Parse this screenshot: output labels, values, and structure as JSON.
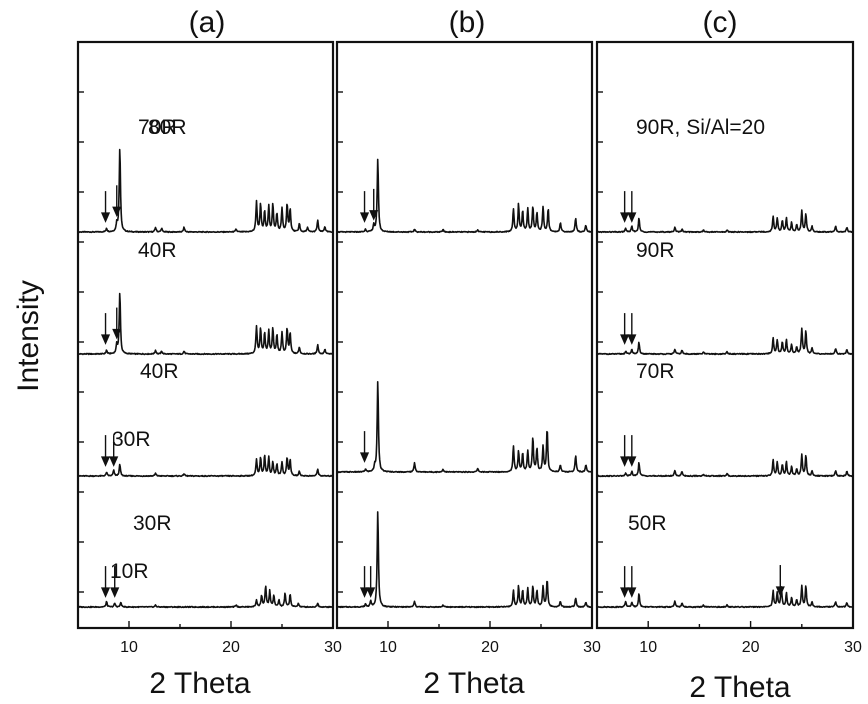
{
  "y_axis_title": "Intensity",
  "chart_data": [
    {
      "type": "line",
      "panel_label": "(a)",
      "xlabel": "2 Theta",
      "ylabel": "Intensity",
      "xlim": [
        5,
        30
      ],
      "x_ticks": [
        10,
        20,
        30
      ],
      "stacked": true,
      "series": [
        {
          "name": "70R",
          "arrows": [
            7.7,
            8.8
          ],
          "peaks": [
            [
              7.8,
              0.08
            ],
            [
              8.8,
              0.18
            ],
            [
              9.1,
              1.85
            ],
            [
              12.6,
              0.1
            ],
            [
              13.2,
              0.08
            ],
            [
              15.4,
              0.1
            ],
            [
              20.5,
              0.06
            ],
            [
              22.5,
              0.65
            ],
            [
              22.9,
              0.6
            ],
            [
              23.3,
              0.45
            ],
            [
              23.7,
              0.55
            ],
            [
              24.1,
              0.6
            ],
            [
              24.5,
              0.4
            ],
            [
              25.0,
              0.5
            ],
            [
              25.5,
              0.6
            ],
            [
              25.8,
              0.5
            ],
            [
              26.7,
              0.18
            ],
            [
              27.5,
              0.1
            ],
            [
              28.5,
              0.25
            ],
            [
              29.2,
              0.12
            ]
          ]
        },
        {
          "name": "40R",
          "arrows": [
            7.7,
            8.8
          ],
          "peaks": [
            [
              7.8,
              0.08
            ],
            [
              8.8,
              0.2
            ],
            [
              9.1,
              1.35
            ],
            [
              12.6,
              0.08
            ],
            [
              13.2,
              0.06
            ],
            [
              15.4,
              0.06
            ],
            [
              22.5,
              0.6
            ],
            [
              22.9,
              0.55
            ],
            [
              23.3,
              0.45
            ],
            [
              23.7,
              0.5
            ],
            [
              24.1,
              0.55
            ],
            [
              24.5,
              0.4
            ],
            [
              25.0,
              0.45
            ],
            [
              25.5,
              0.55
            ],
            [
              25.8,
              0.45
            ],
            [
              26.7,
              0.15
            ],
            [
              28.5,
              0.2
            ],
            [
              29.2,
              0.1
            ]
          ]
        },
        {
          "name": "30R",
          "arrows": [
            7.7,
            8.5
          ],
          "peaks": [
            [
              7.8,
              0.08
            ],
            [
              8.5,
              0.12
            ],
            [
              9.1,
              0.25
            ],
            [
              12.6,
              0.06
            ],
            [
              15.4,
              0.05
            ],
            [
              22.5,
              0.35
            ],
            [
              22.9,
              0.4
            ],
            [
              23.3,
              0.45
            ],
            [
              23.7,
              0.4
            ],
            [
              24.1,
              0.3
            ],
            [
              24.5,
              0.25
            ],
            [
              25.0,
              0.3
            ],
            [
              25.5,
              0.4
            ],
            [
              25.8,
              0.35
            ],
            [
              26.7,
              0.1
            ],
            [
              28.5,
              0.15
            ]
          ]
        },
        {
          "name": "10R",
          "arrows": [
            7.7,
            8.6
          ],
          "peaks": [
            [
              7.8,
              0.12
            ],
            [
              8.6,
              0.08
            ],
            [
              9.2,
              0.1
            ],
            [
              12.6,
              0.04
            ],
            [
              20.5,
              0.04
            ],
            [
              22.5,
              0.15
            ],
            [
              23.0,
              0.25
            ],
            [
              23.4,
              0.45
            ],
            [
              23.8,
              0.35
            ],
            [
              24.2,
              0.25
            ],
            [
              24.7,
              0.15
            ],
            [
              25.3,
              0.3
            ],
            [
              25.8,
              0.28
            ],
            [
              26.6,
              0.08
            ],
            [
              28.5,
              0.08
            ]
          ]
        }
      ]
    },
    {
      "type": "line",
      "panel_label": "(b)",
      "xlabel": "2 Theta",
      "ylabel": "",
      "xlim": [
        5,
        30
      ],
      "x_ticks": [
        10,
        20,
        30
      ],
      "stacked": true,
      "series": [
        {
          "name": "80R",
          "arrows": [
            7.7,
            8.6
          ],
          "peaks": [
            [
              7.8,
              0.06
            ],
            [
              8.6,
              0.15
            ],
            [
              9.0,
              1.6
            ],
            [
              12.6,
              0.06
            ],
            [
              15.4,
              0.05
            ],
            [
              18.8,
              0.05
            ],
            [
              22.3,
              0.5
            ],
            [
              22.8,
              0.6
            ],
            [
              23.2,
              0.45
            ],
            [
              23.7,
              0.5
            ],
            [
              24.2,
              0.55
            ],
            [
              24.6,
              0.4
            ],
            [
              25.2,
              0.55
            ],
            [
              25.7,
              0.5
            ],
            [
              26.9,
              0.2
            ],
            [
              28.4,
              0.3
            ],
            [
              29.4,
              0.15
            ]
          ]
        },
        {
          "name": "40R",
          "arrows": [
            7.7
          ],
          "peaks": [
            [
              7.8,
              0.06
            ],
            [
              8.7,
              0.12
            ],
            [
              9.0,
              2.0
            ],
            [
              12.6,
              0.2
            ],
            [
              15.4,
              0.06
            ],
            [
              18.8,
              0.08
            ],
            [
              22.3,
              0.55
            ],
            [
              22.8,
              0.45
            ],
            [
              23.2,
              0.4
            ],
            [
              23.7,
              0.45
            ],
            [
              24.2,
              0.75
            ],
            [
              24.6,
              0.5
            ],
            [
              25.2,
              0.55
            ],
            [
              25.6,
              0.95
            ],
            [
              26.9,
              0.15
            ],
            [
              28.4,
              0.35
            ],
            [
              29.4,
              0.15
            ]
          ]
        },
        {
          "name": "30R",
          "arrows": [
            7.7,
            8.3
          ],
          "peaks": [
            [
              7.8,
              0.06
            ],
            [
              8.3,
              0.12
            ],
            [
              9.0,
              2.1
            ],
            [
              12.6,
              0.12
            ],
            [
              15.4,
              0.04
            ],
            [
              22.3,
              0.35
            ],
            [
              22.8,
              0.45
            ],
            [
              23.2,
              0.35
            ],
            [
              23.7,
              0.4
            ],
            [
              24.2,
              0.45
            ],
            [
              24.6,
              0.35
            ],
            [
              25.2,
              0.45
            ],
            [
              25.6,
              0.6
            ],
            [
              26.9,
              0.12
            ],
            [
              28.4,
              0.2
            ],
            [
              29.4,
              0.1
            ]
          ]
        }
      ]
    },
    {
      "type": "line",
      "panel_label": "(c)",
      "xlabel": "2 Theta",
      "ylabel": "",
      "xlim": [
        5,
        30
      ],
      "x_ticks": [
        10,
        20,
        30
      ],
      "stacked": true,
      "series": [
        {
          "name": "90R, Si/Al=20",
          "arrows": [
            7.7,
            8.4
          ],
          "peaks": [
            [
              7.8,
              0.08
            ],
            [
              8.4,
              0.12
            ],
            [
              9.1,
              0.3
            ],
            [
              12.6,
              0.1
            ],
            [
              13.3,
              0.06
            ],
            [
              15.4,
              0.04
            ],
            [
              17.7,
              0.04
            ],
            [
              22.2,
              0.35
            ],
            [
              22.6,
              0.3
            ],
            [
              23.1,
              0.25
            ],
            [
              23.5,
              0.3
            ],
            [
              24.0,
              0.2
            ],
            [
              24.5,
              0.15
            ],
            [
              25.0,
              0.45
            ],
            [
              25.4,
              0.4
            ],
            [
              26.0,
              0.12
            ],
            [
              28.3,
              0.12
            ],
            [
              29.4,
              0.1
            ]
          ]
        },
        {
          "name": "90R",
          "arrows": [
            7.7,
            8.4
          ],
          "peaks": [
            [
              7.8,
              0.06
            ],
            [
              8.4,
              0.1
            ],
            [
              9.1,
              0.25
            ],
            [
              12.6,
              0.1
            ],
            [
              13.3,
              0.08
            ],
            [
              15.4,
              0.04
            ],
            [
              17.7,
              0.05
            ],
            [
              22.2,
              0.35
            ],
            [
              22.6,
              0.3
            ],
            [
              23.1,
              0.25
            ],
            [
              23.5,
              0.3
            ],
            [
              24.0,
              0.2
            ],
            [
              24.5,
              0.15
            ],
            [
              25.0,
              0.55
            ],
            [
              25.4,
              0.5
            ],
            [
              26.0,
              0.12
            ],
            [
              28.3,
              0.12
            ],
            [
              29.4,
              0.1
            ]
          ]
        },
        {
          "name": "70R",
          "arrows": [
            7.7,
            8.4
          ],
          "peaks": [
            [
              7.8,
              0.06
            ],
            [
              8.4,
              0.1
            ],
            [
              9.1,
              0.3
            ],
            [
              12.6,
              0.12
            ],
            [
              13.3,
              0.1
            ],
            [
              15.4,
              0.04
            ],
            [
              17.7,
              0.05
            ],
            [
              22.2,
              0.35
            ],
            [
              22.6,
              0.3
            ],
            [
              23.1,
              0.25
            ],
            [
              23.5,
              0.3
            ],
            [
              24.0,
              0.2
            ],
            [
              24.5,
              0.15
            ],
            [
              25.0,
              0.45
            ],
            [
              25.4,
              0.45
            ],
            [
              26.0,
              0.1
            ],
            [
              28.3,
              0.12
            ],
            [
              29.4,
              0.1
            ]
          ]
        },
        {
          "name": "50R",
          "arrows": [
            7.7,
            8.4,
            22.9
          ],
          "peaks": [
            [
              7.8,
              0.12
            ],
            [
              8.4,
              0.1
            ],
            [
              9.1,
              0.3
            ],
            [
              12.6,
              0.12
            ],
            [
              13.3,
              0.08
            ],
            [
              15.4,
              0.04
            ],
            [
              17.7,
              0.05
            ],
            [
              22.2,
              0.35
            ],
            [
              22.6,
              0.3
            ],
            [
              23.0,
              0.45
            ],
            [
              23.5,
              0.3
            ],
            [
              24.0,
              0.2
            ],
            [
              24.5,
              0.15
            ],
            [
              25.0,
              0.45
            ],
            [
              25.4,
              0.45
            ],
            [
              26.0,
              0.1
            ],
            [
              28.3,
              0.12
            ],
            [
              29.4,
              0.1
            ]
          ]
        }
      ]
    }
  ]
}
